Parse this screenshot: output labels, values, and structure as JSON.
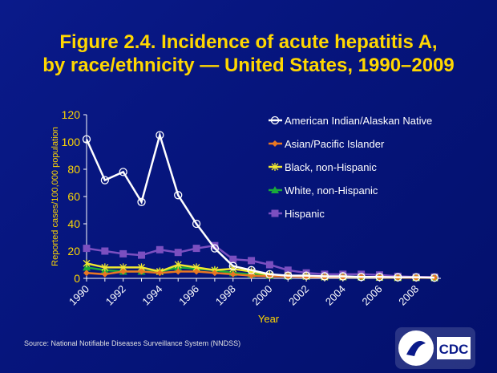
{
  "title_line1": "Figure 2.4.  Incidence of acute hepatitis A,",
  "title_line2": "by race/ethnicity — United States, 1990–2009",
  "source": "Source: National Notifiable Diseases Surveillance System (NNDSS)",
  "logo_text": "CDC",
  "chart_data": {
    "type": "line",
    "title": "Figure 2.4. Incidence of acute hepatitis A, by race/ethnicity — United States, 1990–2009",
    "xlabel": "Year",
    "ylabel": "Reported cases/100,000 population",
    "ylim": [
      0,
      120
    ],
    "yticks": [
      "0",
      "20",
      "40",
      "60",
      "80",
      "100",
      "120"
    ],
    "x": [
      1990,
      1991,
      1992,
      1993,
      1994,
      1995,
      1996,
      1997,
      1998,
      1999,
      2000,
      2001,
      2002,
      2003,
      2004,
      2005,
      2006,
      2007,
      2008,
      2009
    ],
    "xticks": [
      "1990",
      "1992",
      "1994",
      "1996",
      "1998",
      "2000",
      "2002",
      "2004",
      "2006",
      "2008"
    ],
    "legend_position": "right",
    "series": [
      {
        "name": "American Indian/Alaskan Native",
        "color": "#ffffff",
        "marker": "circle",
        "values": [
          102,
          72,
          78,
          56,
          105,
          61,
          40,
          22,
          9,
          6,
          3,
          2,
          2,
          1.5,
          1.5,
          1,
          1,
          0.8,
          0.8,
          0.5
        ]
      },
      {
        "name": "Asian/Pacific Islander",
        "color": "#e87722",
        "marker": "diamond",
        "values": [
          4,
          3,
          5,
          5,
          4,
          5,
          5,
          4,
          3,
          2,
          1.5,
          1.5,
          1,
          1,
          1,
          1,
          0.7,
          0.6,
          0.5,
          0.5
        ]
      },
      {
        "name": "Black, non-Hispanic",
        "color": "#f0e830",
        "marker": "star",
        "values": [
          11,
          8,
          8,
          8,
          5,
          10,
          8,
          6,
          7,
          5,
          2.5,
          2,
          1.5,
          1,
          1,
          0.9,
          0.7,
          0.5,
          0.5,
          0.4
        ]
      },
      {
        "name": "White, non-Hispanic",
        "color": "#1aaa3a",
        "marker": "triangle",
        "values": [
          8,
          6,
          5,
          5,
          5,
          8,
          7,
          6,
          4,
          3,
          2,
          1.5,
          1.5,
          1,
          1,
          0.9,
          0.7,
          0.5,
          0.5,
          0.4
        ]
      },
      {
        "name": "Hispanic",
        "color": "#7b4fc0",
        "marker": "square",
        "values": [
          22,
          20,
          18,
          17,
          21,
          19,
          22,
          24,
          14,
          13,
          10,
          6,
          4,
          3,
          3,
          3,
          2.5,
          1.5,
          1,
          1
        ]
      }
    ]
  }
}
